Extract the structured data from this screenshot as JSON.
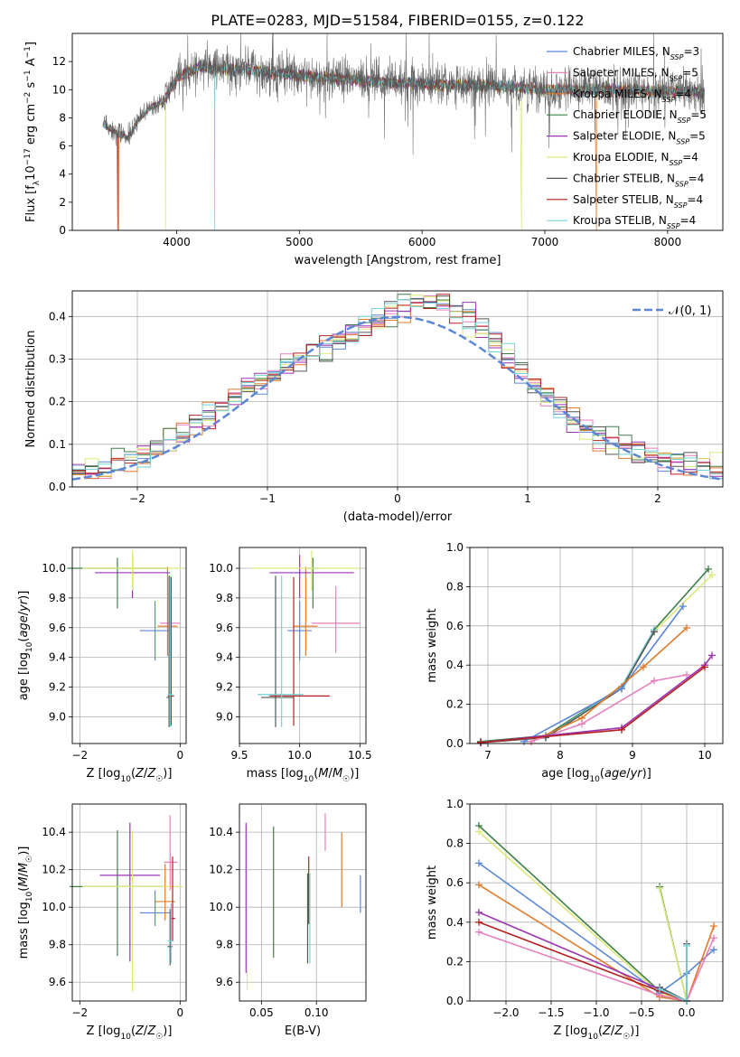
{
  "figure": {
    "title": "PLATE=0283, MJD=51584, FIBERID=0155, z=0.122"
  },
  "colors": {
    "Chabrier MILES": "#5b87d6",
    "Salpeter MILES": "#e67fbd",
    "Kroupa MILES": "#e07b2c",
    "Chabrier ELODIE": "#3f7f47",
    "Salpeter ELODIE": "#9b33b3",
    "Kroupa ELODIE": "#dbe97a",
    "Chabrier STELIB": "#575757",
    "Salpeter STELIB": "#b52020",
    "Kroupa STELIB": "#74d3d8"
  },
  "chart_data": [
    {
      "id": "spectrum",
      "type": "line",
      "title": "PLATE=0283, MJD=51584, FIBERID=0155, z=0.122",
      "xlabel": "wavelength [Angstrom, rest frame]",
      "ylabel": "Flux [f_λ 10^-17 erg cm^-2 s^-1 A^-1]",
      "xlim": [
        3150,
        8450
      ],
      "ylim": [
        0,
        14
      ],
      "xticks": [
        4000,
        5000,
        6000,
        7000,
        8000
      ],
      "yticks": [
        0,
        2,
        4,
        6,
        8,
        10,
        12
      ],
      "grid": false,
      "legend": "top-right",
      "legend_entries": [
        {
          "model": "Chabrier MILES",
          "nssp": 3
        },
        {
          "model": "Salpeter MILES",
          "nssp": 5
        },
        {
          "model": "Kroupa MILES",
          "nssp": 4
        },
        {
          "model": "Chabrier ELODIE",
          "nssp": 5
        },
        {
          "model": "Salpeter ELODIE",
          "nssp": 5
        },
        {
          "model": "Kroupa ELODIE",
          "nssp": 4
        },
        {
          "model": "Chabrier STELIB",
          "nssp": 4
        },
        {
          "model": "Salpeter STELIB",
          "nssp": 4
        },
        {
          "model": "Kroupa STELIB",
          "nssp": 4
        }
      ],
      "data_wavelength_range": [
        3400,
        8300
      ],
      "continuum_knots": [
        [
          3400,
          7.5
        ],
        [
          3500,
          7.0
        ],
        [
          3600,
          6.6
        ],
        [
          3700,
          8.0
        ],
        [
          3800,
          8.8
        ],
        [
          3900,
          9.2
        ],
        [
          4000,
          10.8
        ],
        [
          4100,
          11.3
        ],
        [
          4200,
          11.6
        ],
        [
          4400,
          11.5
        ],
        [
          4600,
          11.4
        ],
        [
          4800,
          11.2
        ],
        [
          5000,
          11.0
        ],
        [
          5300,
          10.8
        ],
        [
          5600,
          10.6
        ],
        [
          6000,
          10.4
        ],
        [
          6500,
          10.3
        ],
        [
          7000,
          10.0
        ],
        [
          7500,
          10.0
        ],
        [
          8000,
          9.9
        ],
        [
          8300,
          9.8
        ]
      ],
      "model_dips": [
        {
          "x": 3520,
          "model": "Salpeter STELIB"
        },
        {
          "x": 3530,
          "model": "Kroupa MILES"
        },
        {
          "x": 3910,
          "model": "Kroupa ELODIE"
        },
        {
          "x": 4310,
          "model": "Kroupa STELIB"
        },
        {
          "x": 6810,
          "model": "Kroupa ELODIE"
        },
        {
          "x": 7420,
          "model": "Kroupa MILES"
        }
      ]
    },
    {
      "id": "residuals",
      "type": "area",
      "xlabel": "(data-model)/error",
      "ylabel": "Normed distribution",
      "xlim": [
        -2.5,
        2.5
      ],
      "ylim": [
        0,
        0.46
      ],
      "xticks": [
        -2,
        -1,
        0,
        1,
        2
      ],
      "yticks": [
        0.0,
        0.1,
        0.2,
        0.3,
        0.4
      ],
      "grid": true,
      "legend": "top-right",
      "reference_label": "𝒩(0, 1)",
      "bins": 50,
      "approx_histogram_peak": 0.45
    },
    {
      "id": "age_vs_Z",
      "type": "scatter",
      "xlabel": "Z [log10(Z/Z☉)]",
      "ylabel": "age [log10(age/yr)]",
      "xlim": [
        -2.15,
        0.12
      ],
      "ylim": [
        8.82,
        10.14
      ],
      "xticks": [
        -2,
        0
      ],
      "yticks": [
        9.0,
        9.2,
        9.4,
        9.6,
        9.8,
        10.0
      ],
      "grid": true,
      "points": [
        {
          "model": "Chabrier MILES",
          "x": -0.5,
          "xerr": [
            0.3,
            0.3
          ],
          "y": 9.58,
          "yerr": [
            0.2,
            0.2
          ]
        },
        {
          "model": "Salpeter MILES",
          "x": -0.2,
          "xerr": [
            0.2,
            0.2
          ],
          "y": 9.63,
          "yerr": [
            0.2,
            0.25
          ]
        },
        {
          "model": "Kroupa MILES",
          "x": -0.25,
          "xerr": [
            0.2,
            0.2
          ],
          "y": 9.61,
          "yerr": [
            0.2,
            0.4
          ]
        },
        {
          "model": "Chabrier ELODIE",
          "x": -1.25,
          "xerr": [
            1.0,
            1.0
          ],
          "y": 10.0,
          "yerr": [
            0.27,
            0.07
          ]
        },
        {
          "model": "Salpeter ELODIE",
          "x": -0.95,
          "xerr": [
            0.75,
            0.75
          ],
          "y": 9.97,
          "yerr": [
            0.17,
            0.12
          ]
        },
        {
          "model": "Kroupa ELODIE",
          "x": -0.95,
          "xerr": [
            1.0,
            1.0
          ],
          "y": 10.0,
          "yerr": [
            0.15,
            0.12
          ]
        },
        {
          "model": "Chabrier STELIB",
          "x": -0.22,
          "xerr": [
            0.05,
            0.05
          ],
          "y": 9.13,
          "yerr": [
            0.2,
            0.82
          ]
        },
        {
          "model": "Salpeter STELIB",
          "x": -0.18,
          "xerr": [
            0.06,
            0.06
          ],
          "y": 9.14,
          "yerr": [
            0.2,
            0.8
          ]
        },
        {
          "model": "Kroupa STELIB",
          "x": -0.2,
          "xerr": [
            0.05,
            0.05
          ],
          "y": 9.15,
          "yerr": [
            0.22,
            0.8
          ]
        }
      ]
    },
    {
      "id": "age_vs_mass",
      "type": "scatter",
      "xlabel": "mass [log10(M/M☉)]",
      "xlim": [
        9.5,
        10.55
      ],
      "ylim": [
        8.82,
        10.14
      ],
      "xticks": [
        9.5,
        10.0,
        10.5
      ],
      "yticks": [
        9.0,
        9.2,
        9.4,
        9.6,
        9.8,
        10.0
      ],
      "grid": true,
      "points": [
        {
          "model": "Chabrier MILES",
          "x": 10.0,
          "xerr": [
            0.1,
            0.1
          ],
          "y": 9.58,
          "yerr": [
            0.2,
            0.2
          ]
        },
        {
          "model": "Salpeter MILES",
          "x": 10.3,
          "xerr": [
            0.2,
            0.2
          ],
          "y": 9.63,
          "yerr": [
            0.2,
            0.25
          ]
        },
        {
          "model": "Kroupa MILES",
          "x": 10.05,
          "xerr": [
            0.1,
            0.1
          ],
          "y": 9.61,
          "yerr": [
            0.2,
            0.4
          ]
        },
        {
          "model": "Chabrier ELODIE",
          "x": 10.11,
          "xerr": [
            0.05,
            0.05
          ],
          "y": 10.0,
          "yerr": [
            0.27,
            0.07
          ]
        },
        {
          "model": "Salpeter ELODIE",
          "x": 10.0,
          "xerr": [
            0.25,
            0.45
          ],
          "y": 9.97,
          "yerr": [
            0.17,
            0.12
          ]
        },
        {
          "model": "Kroupa ELODIE",
          "x": 10.1,
          "xerr": [
            0.5,
            0.4
          ],
          "y": 10.0,
          "yerr": [
            0.15,
            0.12
          ]
        },
        {
          "model": "Chabrier STELIB",
          "x": 9.8,
          "xerr": [
            0.12,
            0.15
          ],
          "y": 9.13,
          "yerr": [
            0.2,
            0.82
          ]
        },
        {
          "model": "Salpeter STELIB",
          "x": 9.95,
          "xerr": [
            0.2,
            0.3
          ],
          "y": 9.14,
          "yerr": [
            0.2,
            0.8
          ]
        },
        {
          "model": "Kroupa STELIB",
          "x": 9.85,
          "xerr": [
            0.2,
            0.18
          ],
          "y": 9.15,
          "yerr": [
            0.22,
            0.8
          ]
        }
      ]
    },
    {
      "id": "massweight_vs_age",
      "type": "line",
      "xlabel": "age [log10(age/yr)]",
      "ylabel": "mass weight",
      "xlim": [
        6.75,
        10.25
      ],
      "ylim": [
        0,
        1
      ],
      "xticks": [
        7,
        8,
        9,
        10
      ],
      "yticks": [
        0.0,
        0.2,
        0.4,
        0.6,
        0.8,
        1.0
      ],
      "grid": true,
      "series": [
        {
          "model": "Chabrier ELODIE",
          "x": [
            6.9,
            7.8,
            8.85,
            9.3,
            10.05
          ],
          "y": [
            0.01,
            0.04,
            0.29,
            0.58,
            0.89
          ]
        },
        {
          "model": "Kroupa ELODIE",
          "x": [
            6.9,
            7.8,
            8.85,
            9.3,
            10.1
          ],
          "y": [
            0.005,
            0.03,
            0.28,
            0.57,
            0.86
          ]
        },
        {
          "model": "Kroupa STELIB",
          "x": [
            6.9,
            7.8,
            8.85,
            9.3
          ],
          "y": [
            0.005,
            0.03,
            0.29,
            0.58
          ]
        },
        {
          "model": "Chabrier STELIB",
          "x": [
            6.9,
            7.8,
            8.85,
            9.3
          ],
          "y": [
            0.005,
            0.03,
            0.28,
            0.57
          ]
        },
        {
          "model": "Chabrier MILES",
          "x": [
            7.5,
            8.85,
            9.7
          ],
          "y": [
            0.01,
            0.28,
            0.7
          ]
        },
        {
          "model": "Kroupa MILES",
          "x": [
            7.6,
            8.3,
            9.15,
            9.75
          ],
          "y": [
            0.01,
            0.13,
            0.39,
            0.59
          ]
        },
        {
          "model": "Salpeter MILES",
          "x": [
            7.6,
            8.3,
            9.3,
            9.75
          ],
          "y": [
            0.01,
            0.1,
            0.32,
            0.35
          ]
        },
        {
          "model": "Salpeter ELODIE",
          "x": [
            6.9,
            8.85,
            10.0,
            10.1
          ],
          "y": [
            0.005,
            0.08,
            0.4,
            0.45
          ]
        },
        {
          "model": "Salpeter STELIB",
          "x": [
            6.9,
            8.85,
            10.0
          ],
          "y": [
            0.005,
            0.07,
            0.39
          ]
        }
      ]
    },
    {
      "id": "mass_vs_Z",
      "type": "scatter",
      "xlabel": "Z [log10(Z/Z☉)]",
      "ylabel": "mass [log10(M/M☉)]",
      "xlim": [
        -2.15,
        0.12
      ],
      "ylim": [
        9.5,
        10.55
      ],
      "xticks": [
        -2,
        0
      ],
      "yticks": [
        9.6,
        9.8,
        10.0,
        10.2,
        10.4
      ],
      "grid": true,
      "points": [
        {
          "model": "Chabrier MILES",
          "x": -0.5,
          "xerr": [
            0.3,
            0.3
          ],
          "y": 9.97,
          "yerr": [
            0.07,
            0.12
          ]
        },
        {
          "model": "Salpeter MILES",
          "x": -0.2,
          "xerr": [
            0.12,
            0.15
          ],
          "y": 10.24,
          "yerr": [
            0.15,
            0.25
          ]
        },
        {
          "model": "Kroupa MILES",
          "x": -0.3,
          "xerr": [
            0.2,
            0.2
          ],
          "y": 10.03,
          "yerr": [
            0.1,
            0.2
          ]
        },
        {
          "model": "Chabrier ELODIE",
          "x": -1.25,
          "xerr": [
            0.95,
            0.95
          ],
          "y": 10.11,
          "yerr": [
            0.37,
            0.3
          ]
        },
        {
          "model": "Salpeter ELODIE",
          "x": -1.0,
          "xerr": [
            0.6,
            0.6
          ],
          "y": 10.17,
          "yerr": [
            0.46,
            0.28
          ]
        },
        {
          "model": "Kroupa ELODIE",
          "x": -0.95,
          "xerr": [
            1.0,
            1.0
          ],
          "y": 10.11,
          "yerr": [
            0.56,
            0.3
          ]
        },
        {
          "model": "Chabrier STELIB",
          "x": -0.2,
          "xerr": [
            0.05,
            0.05
          ],
          "y": 9.79,
          "yerr": [
            0.1,
            0.2
          ]
        },
        {
          "model": "Salpeter STELIB",
          "x": -0.15,
          "xerr": [
            0.05,
            0.05
          ],
          "y": 9.94,
          "yerr": [
            0.12,
            0.33
          ]
        },
        {
          "model": "Kroupa STELIB",
          "x": -0.18,
          "xerr": [
            0.06,
            0.06
          ],
          "y": 9.82,
          "yerr": [
            0.12,
            0.2
          ]
        }
      ]
    },
    {
      "id": "mass_vs_EBV",
      "type": "scatter",
      "xlabel": "E(B-V)",
      "xlim": [
        0.03,
        0.145
      ],
      "ylim": [
        9.5,
        10.55
      ],
      "xticks": [
        0.05,
        0.1
      ],
      "yticks": [
        9.6,
        9.8,
        10.0,
        10.2,
        10.4
      ],
      "grid": true,
      "points": [
        {
          "model": "Chabrier MILES",
          "x": 0.14,
          "yerr": [
            0.1,
            0.1
          ],
          "y": 10.07
        },
        {
          "model": "Salpeter MILES",
          "x": 0.108,
          "yerr": [
            0.1,
            0.1
          ],
          "y": 10.4
        },
        {
          "model": "Kroupa MILES",
          "x": 0.123,
          "yerr": [
            0.2,
            0.2
          ],
          "y": 10.2
        },
        {
          "model": "Chabrier ELODIE",
          "x": 0.061,
          "yerr": [
            0.35,
            0.35
          ],
          "y": 10.08
        },
        {
          "model": "Salpeter ELODIE",
          "x": 0.036,
          "yerr": [
            0.4,
            0.4
          ],
          "y": 10.05
        },
        {
          "model": "Kroupa ELODIE",
          "x": 0.037,
          "yerr": [
            0.44,
            0.44
          ],
          "y": 10.0
        },
        {
          "model": "Chabrier STELIB",
          "x": 0.092,
          "yerr": [
            0.24,
            0.24
          ],
          "y": 9.94
        },
        {
          "model": "Salpeter STELIB",
          "x": 0.093,
          "yerr": [
            0.18,
            0.18
          ],
          "y": 10.09
        },
        {
          "model": "Kroupa STELIB",
          "x": 0.094,
          "yerr": [
            0.24,
            0.24
          ],
          "y": 9.94
        }
      ]
    },
    {
      "id": "massweight_vs_Z",
      "type": "line",
      "xlabel": "Z [log10(Z/Z☉)]",
      "ylabel": "mass weight",
      "xlim": [
        -2.4,
        0.4
      ],
      "ylim": [
        0,
        1
      ],
      "xticks": [
        -2.0,
        -1.5,
        -1.0,
        -0.5,
        0.0
      ],
      "yticks": [
        0.0,
        0.2,
        0.4,
        0.6,
        0.8,
        1.0
      ],
      "grid": true,
      "series": [
        {
          "model": "Chabrier ELODIE",
          "x": [
            -2.3,
            -0.3,
            0.0,
            -0.3
          ],
          "y": [
            0.89,
            0.05,
            0.0,
            0.58
          ]
        },
        {
          "model": "Kroupa ELODIE",
          "x": [
            -2.3,
            -0.3,
            0.0,
            -0.3
          ],
          "y": [
            0.86,
            0.04,
            0.0,
            0.57
          ]
        },
        {
          "model": "Chabrier MILES",
          "x": [
            -2.3,
            -0.3,
            0.0,
            0.3
          ],
          "y": [
            0.7,
            0.04,
            0.14,
            0.26
          ]
        },
        {
          "model": "Kroupa MILES",
          "x": [
            -2.3,
            -0.3,
            0.0,
            0.3
          ],
          "y": [
            0.59,
            0.02,
            0.0,
            0.38
          ]
        },
        {
          "model": "Salpeter ELODIE",
          "x": [
            -2.3,
            -0.3,
            0.0
          ],
          "y": [
            0.45,
            0.06,
            0.0
          ]
        },
        {
          "model": "Salpeter STELIB",
          "x": [
            -2.3,
            -0.3,
            0.0
          ],
          "y": [
            0.4,
            0.05,
            0.0
          ]
        },
        {
          "model": "Salpeter MILES",
          "x": [
            -2.3,
            -0.3,
            0.0,
            0.3
          ],
          "y": [
            0.35,
            0.03,
            0.0,
            0.32
          ]
        },
        {
          "model": "Chabrier STELIB",
          "x": [
            -0.3,
            0.0,
            0.0
          ],
          "y": [
            0.07,
            0.0,
            0.29
          ]
        },
        {
          "model": "Kroupa STELIB",
          "x": [
            -0.3,
            0.0,
            0.0
          ],
          "y": [
            0.06,
            0.0,
            0.28
          ]
        }
      ]
    }
  ]
}
